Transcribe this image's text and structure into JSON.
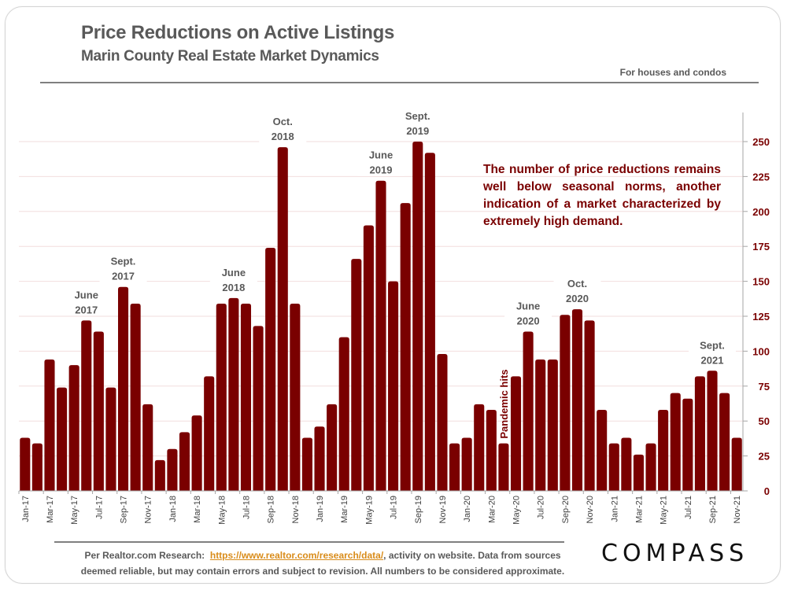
{
  "header": {
    "title": "Price Reductions on Active Listings",
    "subtitle": "Marin County Real Estate Market Dynamics",
    "note": "For houses and condos"
  },
  "callout": "The number of price reductions remains well below seasonal norms, another indication of a market characterized by extremely high demand.",
  "footer": {
    "source_prefix": "Per Realtor.com Research:",
    "source_link": "https://www.realtor.com/research/data/",
    "source_suffix": ", activity on website. Data from sources",
    "line2": "deemed reliable, but may contain errors and subject to revision. All numbers to be considered approximate.",
    "logo": "COMPASS"
  },
  "colors": {
    "bar": "#7a0000",
    "axis_text": "#7a0000",
    "annotation_text": "#595959",
    "link": "#d98c1a"
  },
  "chart_data": {
    "type": "bar",
    "title": "Price Reductions on Active Listings",
    "subtitle": "Marin County Real Estate Market Dynamics",
    "xlabel": "",
    "ylabel": "",
    "ylim": [
      0,
      260
    ],
    "yticks": [
      0,
      25,
      50,
      75,
      100,
      125,
      150,
      175,
      200,
      225,
      250
    ],
    "y_axis_side": "right",
    "grid": true,
    "categories": [
      "Jan-17",
      "Feb-17",
      "Mar-17",
      "Apr-17",
      "May-17",
      "Jun-17",
      "Jul-17",
      "Aug-17",
      "Sep-17",
      "Oct-17",
      "Nov-17",
      "Dec-17",
      "Jan-18",
      "Feb-18",
      "Mar-18",
      "Apr-18",
      "May-18",
      "Jun-18",
      "Jul-18",
      "Aug-18",
      "Sep-18",
      "Oct-18",
      "Nov-18",
      "Dec-18",
      "Jan-19",
      "Feb-19",
      "Mar-19",
      "Apr-19",
      "May-19",
      "Jun-19",
      "Jul-19",
      "Aug-19",
      "Sep-19",
      "Oct-19",
      "Nov-19",
      "Dec-19",
      "Jan-20",
      "Feb-20",
      "Mar-20",
      "Apr-20",
      "May-20",
      "Jun-20",
      "Jul-20",
      "Aug-20",
      "Sep-20",
      "Oct-20",
      "Nov-20",
      "Dec-20",
      "Jan-21",
      "Feb-21",
      "Mar-21",
      "Apr-21",
      "May-21",
      "Jun-21",
      "Jul-21",
      "Aug-21",
      "Sep-21",
      "Oct-21",
      "Nov-21"
    ],
    "x_tick_labels_shown_every": 2,
    "values": [
      38,
      34,
      94,
      74,
      90,
      122,
      114,
      74,
      146,
      134,
      62,
      22,
      30,
      42,
      54,
      82,
      134,
      138,
      134,
      118,
      174,
      246,
      134,
      38,
      46,
      62,
      110,
      166,
      190,
      222,
      150,
      206,
      250,
      242,
      98,
      34,
      38,
      62,
      58,
      34,
      82,
      114,
      94,
      94,
      126,
      130,
      122,
      58,
      34,
      38,
      26,
      34,
      58,
      70,
      66,
      82,
      86,
      70,
      38
    ],
    "annotations": [
      {
        "text": [
          "June",
          "2017"
        ],
        "category": "Jun-17"
      },
      {
        "text": [
          "Sept.",
          "2017"
        ],
        "category": "Sep-17"
      },
      {
        "text": [
          "June",
          "2018"
        ],
        "category": "Jun-18"
      },
      {
        "text": [
          "Oct.",
          "2018"
        ],
        "category": "Oct-18"
      },
      {
        "text": [
          "June",
          "2019"
        ],
        "category": "Jun-19"
      },
      {
        "text": [
          "Sept.",
          "2019"
        ],
        "category": "Sep-19"
      },
      {
        "text": [
          "June",
          "2020"
        ],
        "category": "Jun-20"
      },
      {
        "text": [
          "Oct.",
          "2020"
        ],
        "category": "Oct-20"
      },
      {
        "text": [
          "Sept.",
          "2021"
        ],
        "category": "Sep-21"
      }
    ],
    "event_marker": {
      "text": "Pandemic hits",
      "category": "Apr-20",
      "orientation": "vertical"
    }
  }
}
